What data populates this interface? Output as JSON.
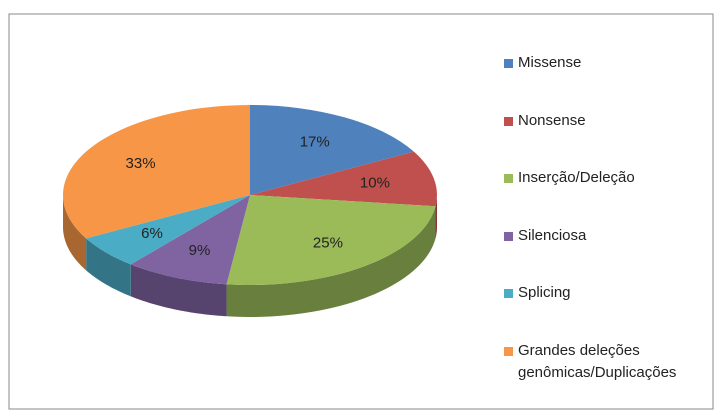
{
  "chart_data": {
    "type": "pie",
    "categories": [
      "Missense",
      "Nonsense",
      "Inserção/Deleção",
      "Silenciosa",
      "Splicing",
      "Grandes deleções genômicas/Duplicações"
    ],
    "values": [
      17,
      10,
      25,
      9,
      6,
      33
    ],
    "value_labels": [
      "17%",
      "10%",
      "25%",
      "9%",
      "6%",
      "33%"
    ],
    "colors": [
      "#4f81bd",
      "#c0504d",
      "#9bbb59",
      "#8064a2",
      "#4bacc6",
      "#f79646"
    ],
    "legend": "right"
  }
}
